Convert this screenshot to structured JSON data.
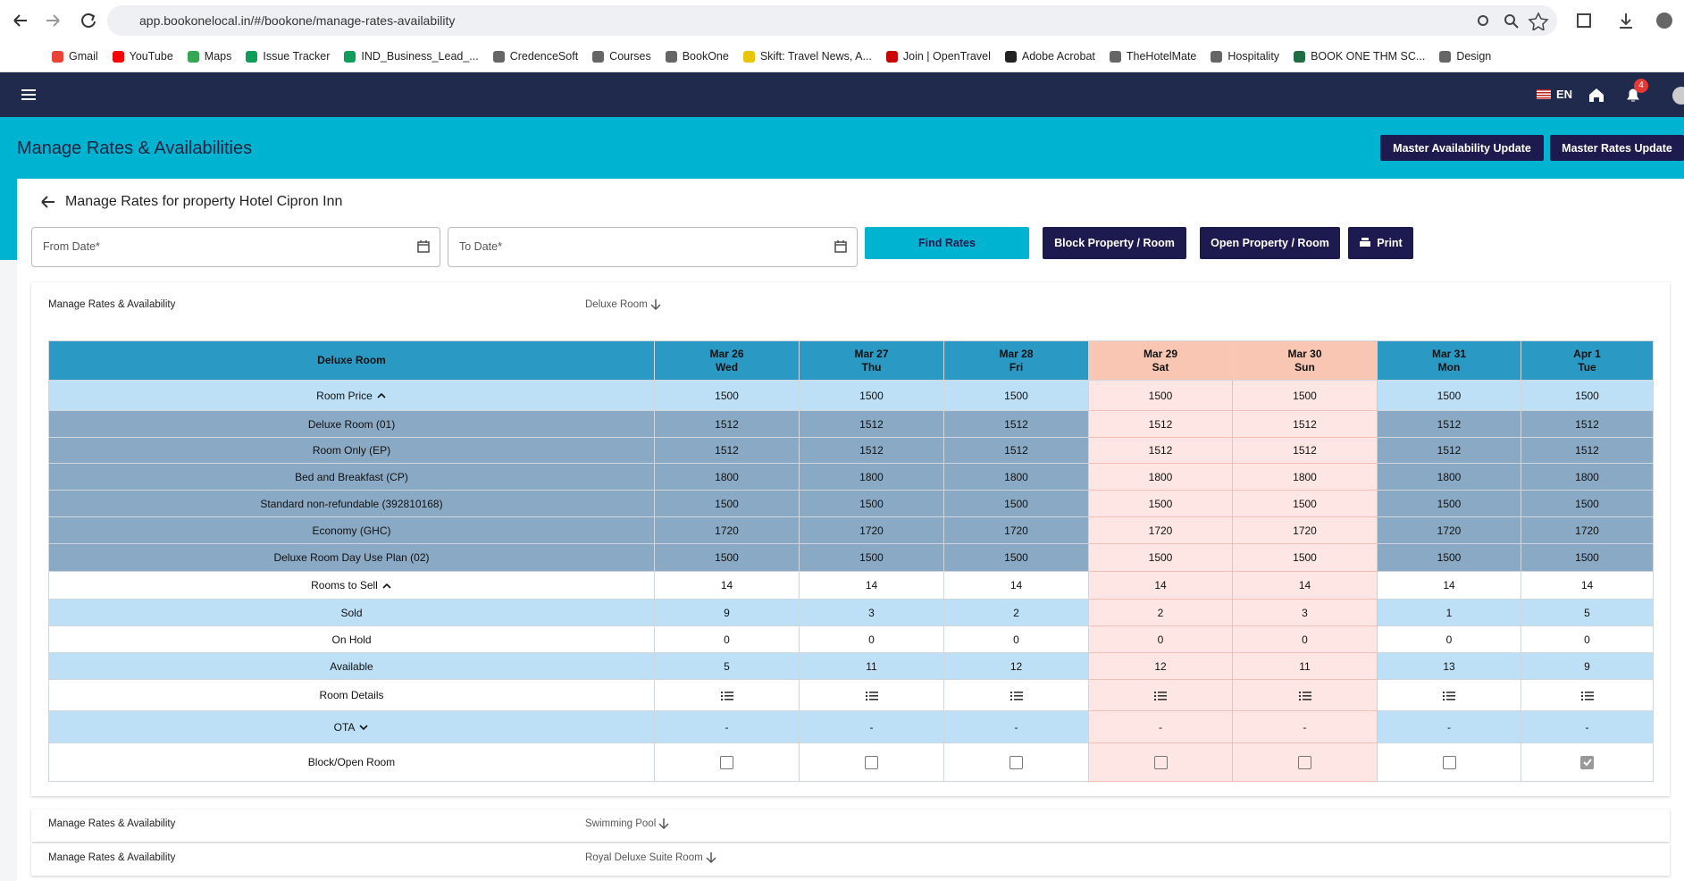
{
  "browser": {
    "url": "app.bookonelocal.in/#/bookone/manage-rates-availability",
    "bookmarks": [
      "Gmail",
      "YouTube",
      "Maps",
      "Issue Tracker",
      "IND_Business_Lead_...",
      "CredenceSoft",
      "Courses",
      "BookOne",
      "Skift: Travel News, A...",
      "Join | OpenTravel",
      "Adobe Acrobat",
      "TheHotelMate",
      "Hospitality",
      "BOOK ONE THM SC...",
      "Design"
    ]
  },
  "app_bar": {
    "language": "EN",
    "notifications": 4
  },
  "page": {
    "title": "Manage Rates & Availabilities",
    "buttons": [
      "Master Availability Update",
      "Master Rates Update"
    ]
  },
  "card": {
    "title": "Manage Rates for property Hotel Cipron Inn",
    "from_date": "From Date*",
    "to_date": "To Date*",
    "find": "Find Rates",
    "block": "Block Property / Room",
    "open": "Open Property / Room",
    "print": "Print"
  },
  "rates_panel": {
    "label": "Manage Rates & Availability",
    "room": "Deluxe Room"
  },
  "table": {
    "header": "Deluxe Room",
    "columns": [
      {
        "date": "Mar 26",
        "day": "Wed",
        "weekend": false
      },
      {
        "date": "Mar 27",
        "day": "Thu",
        "weekend": false
      },
      {
        "date": "Mar 28",
        "day": "Fri",
        "weekend": false
      },
      {
        "date": "Mar 29",
        "day": "Sat",
        "weekend": true
      },
      {
        "date": "Mar 30",
        "day": "Sun",
        "weekend": true
      },
      {
        "date": "Mar 31",
        "day": "Mon",
        "weekend": false
      },
      {
        "date": "Apr 1",
        "day": "Tue",
        "weekend": false
      }
    ],
    "rows": [
      {
        "label": "Room Price",
        "style": "light",
        "toggle": "up",
        "values": [
          1500,
          1500,
          1500,
          1500,
          1500,
          1500,
          1500
        ]
      },
      {
        "label": "Deluxe Room (01)",
        "style": "steel",
        "values": [
          1512,
          1512,
          1512,
          1512,
          1512,
          1512,
          1512
        ]
      },
      {
        "label": "Room Only (EP)",
        "style": "steel",
        "values": [
          1512,
          1512,
          1512,
          1512,
          1512,
          1512,
          1512
        ]
      },
      {
        "label": "Bed and Breakfast (CP)",
        "style": "steel",
        "values": [
          1800,
          1800,
          1800,
          1800,
          1800,
          1800,
          1800
        ]
      },
      {
        "label": "Standard non-refundable (392810168)",
        "style": "steel",
        "values": [
          1500,
          1500,
          1500,
          1500,
          1500,
          1500,
          1500
        ]
      },
      {
        "label": "Economy (GHC)",
        "style": "steel",
        "values": [
          1720,
          1720,
          1720,
          1720,
          1720,
          1720,
          1720
        ]
      },
      {
        "label": "Deluxe Room Day Use Plan (02)",
        "style": "steel",
        "values": [
          1500,
          1500,
          1500,
          1500,
          1500,
          1500,
          1500
        ]
      },
      {
        "label": "Rooms to Sell",
        "style": "white",
        "toggle": "up",
        "values": [
          14,
          14,
          14,
          14,
          14,
          14,
          14
        ]
      },
      {
        "label": "Sold",
        "style": "light",
        "values": [
          9,
          3,
          2,
          2,
          3,
          1,
          5
        ]
      },
      {
        "label": "On Hold",
        "style": "white",
        "values": [
          0,
          0,
          0,
          0,
          0,
          0,
          0
        ]
      },
      {
        "label": "Available",
        "style": "light",
        "values": [
          5,
          11,
          12,
          12,
          11,
          13,
          9
        ]
      },
      {
        "label": "Room Details",
        "style": "white",
        "cell": "details"
      },
      {
        "label": "OTA",
        "style": "light",
        "toggle": "down",
        "values": [
          "-",
          "-",
          "-",
          "-",
          "-",
          "-",
          "-"
        ]
      },
      {
        "label": "Block/Open Room",
        "style": "white",
        "cell": "checkbox",
        "checked": [
          false,
          false,
          false,
          false,
          false,
          false,
          true
        ]
      }
    ]
  },
  "other_panels": [
    {
      "label": "Manage Rates & Availability",
      "room": "Swimming Pool"
    },
    {
      "label": "Manage Rates & Availability",
      "room": "Royal Deluxe Suite Room"
    }
  ]
}
